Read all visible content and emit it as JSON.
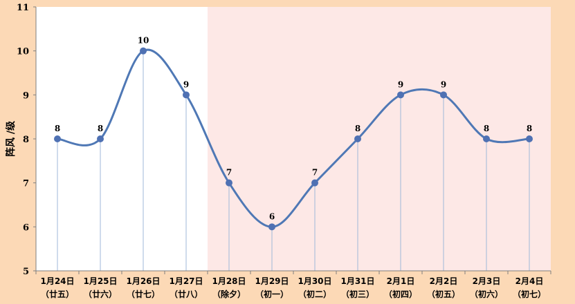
{
  "colors": {
    "background": "#fcd9b6",
    "plot_white": "#ffffff",
    "plot_pink": "#fde8e6",
    "line": "#4f78b5",
    "point": "#4f71b3",
    "guide": "#9fb7d8",
    "axis": "#7f7f7f"
  },
  "chart_data": {
    "type": "line",
    "title": "",
    "xlabel": "",
    "ylabel": "阵风 /级",
    "ylim": [
      5,
      11
    ],
    "y_ticks": [
      "5",
      "6",
      "7",
      "8",
      "9",
      "10",
      "11"
    ],
    "categories": [
      {
        "date": "1月24日",
        "lunar": "（廿五）"
      },
      {
        "date": "1月25日",
        "lunar": "（廿六）"
      },
      {
        "date": "1月26日",
        "lunar": "（廿七）"
      },
      {
        "date": "1月27日",
        "lunar": "（廿八）"
      },
      {
        "date": "1月28日",
        "lunar": "（除夕）"
      },
      {
        "date": "1月29日",
        "lunar": "（初一）"
      },
      {
        "date": "1月30日",
        "lunar": "（初二）"
      },
      {
        "date": "1月31日",
        "lunar": "（初三）"
      },
      {
        "date": "2月1日",
        "lunar": "（初四）"
      },
      {
        "date": "2月2日",
        "lunar": "（初五）"
      },
      {
        "date": "2月3日",
        "lunar": "（初六）"
      },
      {
        "date": "2月4日",
        "lunar": "（初七）"
      }
    ],
    "series": [
      {
        "values": [
          8,
          8,
          10,
          9,
          7,
          6,
          7,
          8,
          9,
          9,
          8,
          8
        ],
        "labels": [
          "8",
          "8",
          "10",
          "9",
          "7",
          "6",
          "7",
          "8",
          "9",
          "9",
          "8",
          "8"
        ]
      }
    ],
    "highlight_from_category": "1月28日",
    "smooth": true,
    "grid": false,
    "legend": "none"
  }
}
